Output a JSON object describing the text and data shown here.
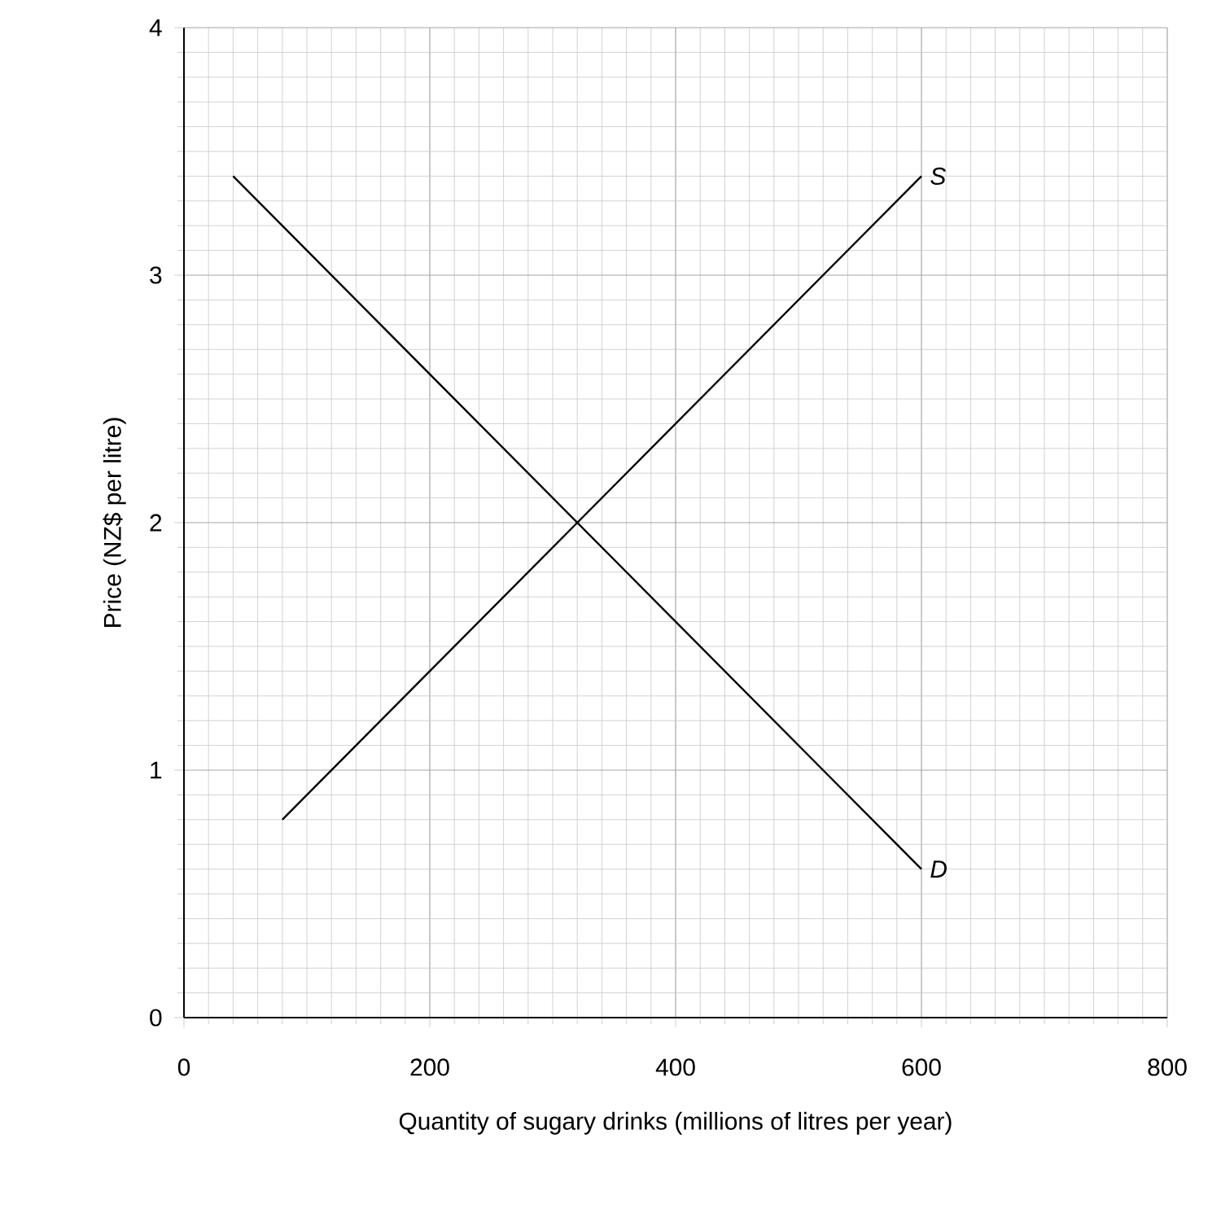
{
  "chart_data": {
    "type": "line",
    "xlabel": "Quantity of sugary drinks (millions of litres per year)",
    "ylabel": "Price (NZ$ per litre)",
    "xlim": [
      0,
      800
    ],
    "ylim": [
      0,
      4
    ],
    "xticks": [
      0,
      200,
      400,
      600,
      800
    ],
    "yticks": [
      0,
      1,
      2,
      3,
      4
    ],
    "grid": true,
    "marker": "none",
    "line_style": "solid",
    "series": [
      {
        "name": "S",
        "color": "#000000",
        "x": [
          80,
          600
        ],
        "values": [
          0.8,
          3.4
        ]
      },
      {
        "name": "D",
        "color": "#000000",
        "x": [
          40,
          600
        ],
        "values": [
          3.4,
          0.6
        ]
      }
    ]
  }
}
